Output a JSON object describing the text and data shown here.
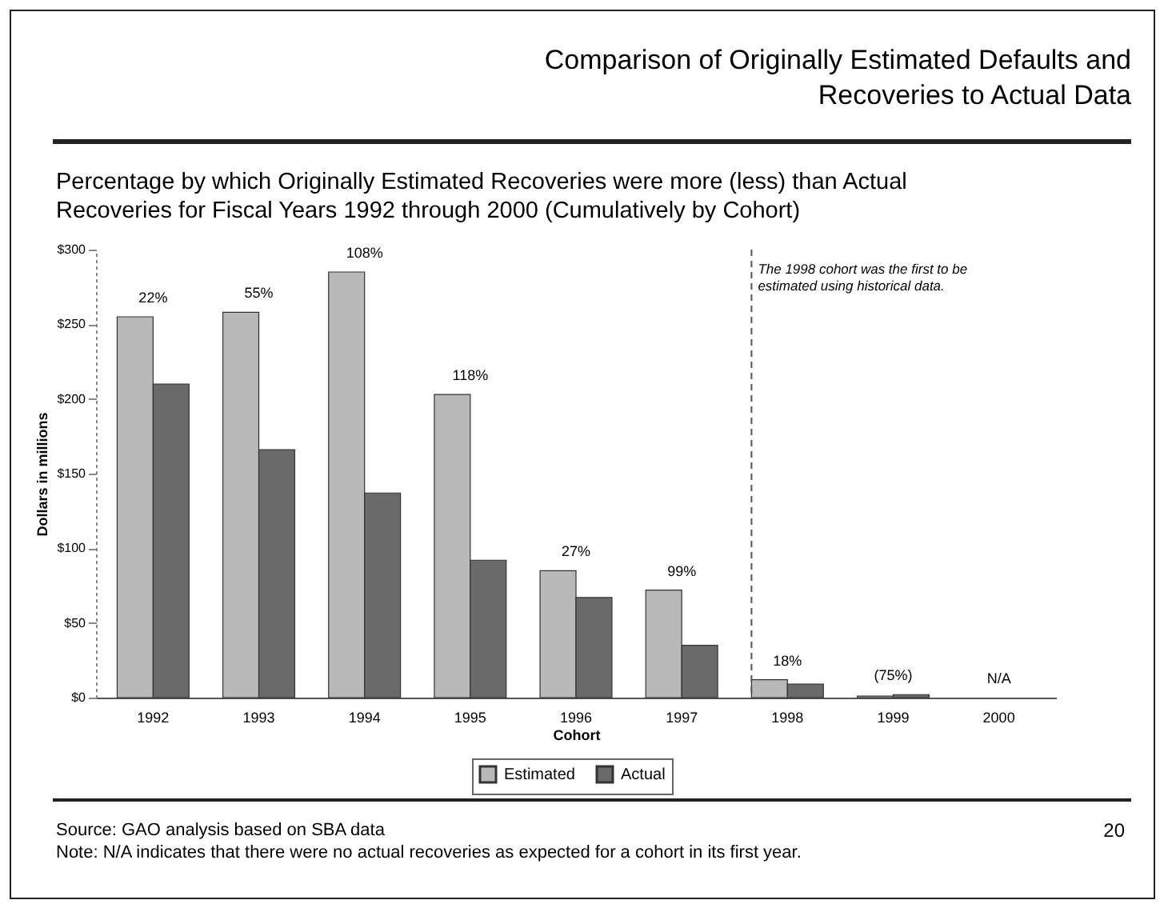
{
  "chart_data": {
    "type": "bar",
    "title": "Comparison of Originally Estimated Defaults and Recoveries to Actual Data",
    "subtitle": "Percentage by which Originally Estimated Recoveries were more (less) than Actual Recoveries for Fiscal Years 1992 through 2000 (Cumulatively by Cohort)",
    "xlabel": "Cohort",
    "ylabel": "Dollars in millions",
    "categories": [
      "1992",
      "1993",
      "1994",
      "1995",
      "1996",
      "1997",
      "1998",
      "1999",
      "2000"
    ],
    "series": [
      {
        "name": "Estimated",
        "color": "#b9b9b9",
        "values": [
          255,
          258,
          285,
          203,
          85,
          72,
          12,
          1,
          null
        ]
      },
      {
        "name": "Actual",
        "color": "#6a6a6a",
        "values": [
          210,
          166,
          137,
          92,
          67,
          35,
          9,
          2,
          null
        ]
      }
    ],
    "ylim": [
      0,
      300
    ],
    "yticks": [
      {
        "value": 0,
        "label": "$0"
      },
      {
        "value": 50,
        "label": "$50"
      },
      {
        "value": 100,
        "label": "$100"
      },
      {
        "value": 150,
        "label": "$150"
      },
      {
        "value": 200,
        "label": "$200"
      },
      {
        "value": 250,
        "label": "$250"
      },
      {
        "value": 300,
        "label": "$300"
      }
    ],
    "ref_lines": [
      {
        "axis": "x",
        "value": "1998",
        "label": "The 1998 cohort was the first  to be estimated using historical data.",
        "line_style": "dashed",
        "color": "#555555"
      }
    ],
    "legend": "bottom",
    "grid": false,
    "annotations": [
      {
        "text": "22%",
        "x": "1992",
        "y": 255
      },
      {
        "text": "55%",
        "x": "1993",
        "y": 258
      },
      {
        "text": "108%",
        "x": "1994",
        "y": 285
      },
      {
        "text": "118%",
        "x": "1995",
        "y": 203
      },
      {
        "text": "27%",
        "x": "1996",
        "y": 85
      },
      {
        "text": "99%",
        "x": "1997",
        "y": 72
      },
      {
        "text": "18%",
        "x": "1998",
        "y": 12
      },
      {
        "text": "(75%)",
        "x": "1999",
        "y": 2
      },
      "N/A",
      "Source: GAO analysis based on SBA data",
      "Note: N/A indicates that there were no actual recoveries as expected for a cohort in its first year.",
      "20"
    ]
  }
}
